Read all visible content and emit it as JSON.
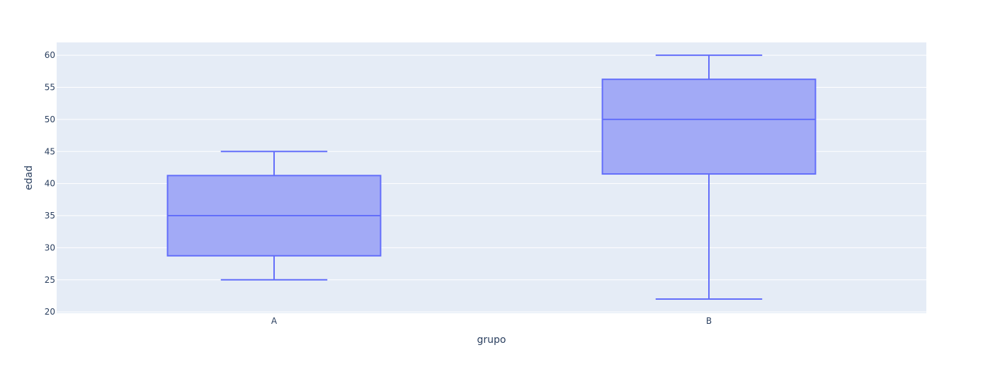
{
  "colors": {
    "plot_background": "#e5ecf6",
    "gridline": "#ffffff",
    "box_line": "#636efa",
    "box_fill": "#a2aaf6",
    "text": "#2a3f5f"
  },
  "chart_data": {
    "type": "box",
    "title": "",
    "xlabel": "grupo",
    "ylabel": "edad",
    "categories": [
      "A",
      "B"
    ],
    "ylim": [
      19.8,
      62
    ],
    "yticks": [
      20,
      25,
      30,
      35,
      40,
      45,
      50,
      55,
      60
    ],
    "grid": true,
    "legend": "none",
    "boxes": [
      {
        "category": "A",
        "min": 25,
        "q1": 28.75,
        "median": 35,
        "q3": 41.25,
        "max": 45
      },
      {
        "category": "B",
        "min": 22,
        "q1": 41.5,
        "median": 50,
        "q3": 56.25,
        "max": 60
      }
    ]
  }
}
